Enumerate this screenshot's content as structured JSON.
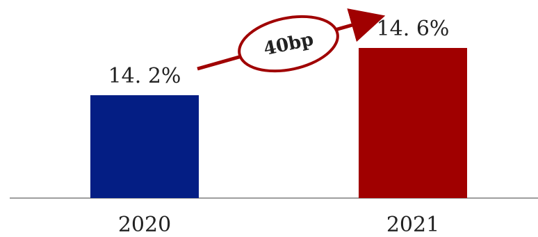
{
  "chart_data": {
    "type": "bar",
    "categories": [
      "2020",
      "2021"
    ],
    "values": [
      14.2,
      14.6
    ],
    "value_labels": [
      "14. 2%",
      "14. 6%"
    ],
    "bar_colors": [
      "#041e84",
      "#a00000"
    ],
    "annotation": {
      "text": "40bp",
      "color": "#a00000"
    },
    "title": "",
    "xlabel": "",
    "ylabel": "",
    "grid": false,
    "legend": "none"
  }
}
